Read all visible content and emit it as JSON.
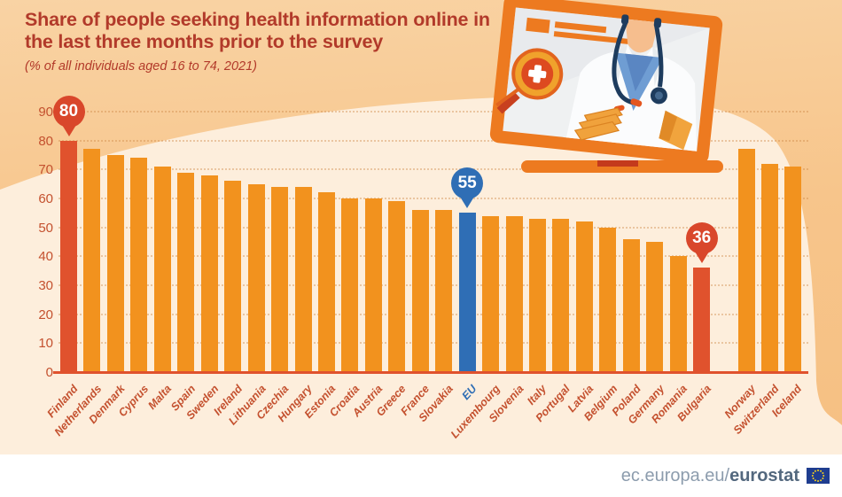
{
  "chart_data": {
    "type": "bar",
    "title": "Share of people seeking health information online in the last three months prior to the survey",
    "subtitle": "(% of all individuals aged 16 to 74, 2021)",
    "unit": "%",
    "ylim": [
      0,
      90
    ],
    "yticks": [
      0,
      10,
      20,
      30,
      40,
      50,
      60,
      70,
      80,
      90
    ],
    "grid": "horizontal-dotted",
    "legend": "none",
    "bars": [
      {
        "label": "Finland",
        "value": 80,
        "color": "red",
        "callout": "80",
        "group": "eu"
      },
      {
        "label": "Netherlands",
        "value": 77,
        "color": "orange",
        "group": "eu"
      },
      {
        "label": "Denmark",
        "value": 75,
        "color": "orange",
        "group": "eu"
      },
      {
        "label": "Cyprus",
        "value": 74,
        "color": "orange",
        "group": "eu"
      },
      {
        "label": "Malta",
        "value": 71,
        "color": "orange",
        "group": "eu"
      },
      {
        "label": "Spain",
        "value": 69,
        "color": "orange",
        "group": "eu"
      },
      {
        "label": "Sweden",
        "value": 68,
        "color": "orange",
        "group": "eu"
      },
      {
        "label": "Ireland",
        "value": 66,
        "color": "orange",
        "group": "eu"
      },
      {
        "label": "Lithuania",
        "value": 65,
        "color": "orange",
        "group": "eu"
      },
      {
        "label": "Czechia",
        "value": 64,
        "color": "orange",
        "group": "eu"
      },
      {
        "label": "Hungary",
        "value": 64,
        "color": "orange",
        "group": "eu"
      },
      {
        "label": "Estonia",
        "value": 62,
        "color": "orange",
        "group": "eu"
      },
      {
        "label": "Croatia",
        "value": 60,
        "color": "orange",
        "group": "eu"
      },
      {
        "label": "Austria",
        "value": 60,
        "color": "orange",
        "group": "eu"
      },
      {
        "label": "Greece",
        "value": 59,
        "color": "orange",
        "group": "eu"
      },
      {
        "label": "France",
        "value": 56,
        "color": "orange",
        "group": "eu"
      },
      {
        "label": "Slovakia",
        "value": 56,
        "color": "orange",
        "group": "eu"
      },
      {
        "label": "EU",
        "value": 55,
        "color": "blue",
        "callout": "55",
        "group": "eu"
      },
      {
        "label": "Luxembourg",
        "value": 54,
        "color": "orange",
        "group": "eu"
      },
      {
        "label": "Slovenia",
        "value": 54,
        "color": "orange",
        "group": "eu"
      },
      {
        "label": "Italy",
        "value": 53,
        "color": "orange",
        "group": "eu"
      },
      {
        "label": "Portugal",
        "value": 53,
        "color": "orange",
        "group": "eu"
      },
      {
        "label": "Latvia",
        "value": 52,
        "color": "orange",
        "group": "eu"
      },
      {
        "label": "Belgium",
        "value": 50,
        "color": "orange",
        "group": "eu"
      },
      {
        "label": "Poland",
        "value": 46,
        "color": "orange",
        "group": "eu"
      },
      {
        "label": "Germany",
        "value": 45,
        "color": "orange",
        "group": "eu"
      },
      {
        "label": "Romania",
        "value": 40,
        "color": "orange",
        "group": "eu"
      },
      {
        "label": "Bulgaria",
        "value": 36,
        "color": "red",
        "callout": "36",
        "group": "eu"
      },
      {
        "label": "Norway",
        "value": 77,
        "color": "orange",
        "group": "efta"
      },
      {
        "label": "Switzerland",
        "value": 72,
        "color": "orange",
        "group": "efta"
      },
      {
        "label": "Iceland",
        "value": 71,
        "color": "orange",
        "group": "efta"
      }
    ]
  },
  "footer": {
    "url_normal": "ec.europa.eu/",
    "url_bold": "eurostat"
  },
  "icons": {
    "laptop_illustration": "laptop-doctor-health-search-illustration",
    "flag": "eu-flag-icon"
  },
  "colors": {
    "bar_orange": "#F2921E",
    "bar_red": "#E0522D",
    "bar_blue": "#2F6EB5",
    "callout_red": "#D9472B",
    "callout_blue": "#2F6EB5",
    "title_red": "#B23A2A",
    "axis_text_red": "#C4512F",
    "label_red": "#C4512F",
    "eu_label_blue": "#2F6EB5",
    "baseline_red": "#E0522D",
    "bg_peach": "#F7C58B",
    "bg_cream": "#FDEEDC",
    "footer_gray": "#8C9CAD",
    "footer_dark": "#53687E",
    "flag_blue": "#1F3D8F",
    "flag_gold": "#F7D21A"
  }
}
